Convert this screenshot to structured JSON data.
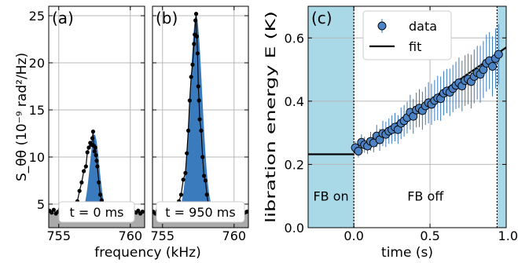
{
  "chart_data": [
    {
      "type": "line",
      "panel": "(a)",
      "ylabel": "S_θθ (10⁻⁹ rad²/Hz)",
      "xlabel": "frequency (kHz)",
      "xlim": [
        754.3,
        761.0
      ],
      "ylim": [
        2.5,
        26
      ],
      "xticks": [
        755,
        760
      ],
      "yticks": [
        5,
        10,
        15,
        20,
        25
      ],
      "grid": true,
      "annotation": "t = 0 ms",
      "noise_floor": 2.5,
      "baseline": 4.1,
      "peak_center": 757.5,
      "peak_height": 12.4,
      "peak_width": 0.33,
      "x": [
        754.35,
        754.5,
        754.65,
        754.8,
        754.95,
        755.1,
        755.25,
        755.4,
        755.55,
        755.7,
        755.85,
        756.0,
        756.15,
        756.3,
        756.45,
        756.6,
        756.75,
        756.9,
        757.0,
        757.1,
        757.2,
        757.3,
        757.35,
        757.4,
        757.45,
        757.5,
        757.55,
        757.6,
        757.65,
        757.7,
        757.8,
        757.9,
        758.0,
        758.1,
        758.2,
        758.3,
        758.45,
        758.6,
        758.75,
        758.9,
        759.05,
        759.2,
        759.35,
        759.5,
        759.65,
        759.8,
        759.95,
        760.1,
        760.25,
        760.4,
        760.55,
        760.7,
        760.85
      ],
      "y": [
        4.3,
        4.1,
        4.4,
        4.0,
        4.2,
        4.5,
        3.9,
        4.3,
        4.1,
        4.6,
        4.2,
        4.9,
        4.7,
        5.3,
        6.4,
        7.3,
        8.5,
        9.0,
        10.5,
        11.0,
        11.5,
        11.3,
        12.0,
        12.7,
        11.2,
        10.6,
        11.0,
        10.2,
        9.6,
        9.0,
        7.3,
        6.0,
        5.4,
        4.8,
        4.6,
        4.4,
        4.0,
        4.3,
        4.1,
        4.2,
        3.9,
        4.0,
        4.3,
        4.2,
        3.9,
        4.1,
        4.4,
        4.0,
        4.2,
        4.1,
        4.3,
        4.0,
        4.2
      ]
    },
    {
      "type": "line",
      "panel": "(b)",
      "xlim": [
        754.3,
        761.0
      ],
      "ylim": [
        2.5,
        26
      ],
      "xticks": [
        755,
        760
      ],
      "grid": true,
      "annotation": "t = 950 ms",
      "noise_floor": 2.5,
      "baseline": 4.1,
      "peak_center": 757.35,
      "peak_height": 25.0,
      "peak_width": 0.42,
      "x": [
        754.35,
        754.5,
        754.65,
        754.8,
        754.95,
        755.1,
        755.25,
        755.4,
        755.55,
        755.7,
        755.85,
        756.0,
        756.15,
        756.3,
        756.45,
        756.6,
        756.7,
        756.8,
        756.9,
        757.0,
        757.1,
        757.2,
        757.25,
        757.3,
        757.35,
        757.4,
        757.45,
        757.5,
        757.55,
        757.6,
        757.7,
        757.8,
        757.9,
        758.0,
        758.1,
        758.2,
        758.35,
        758.5,
        758.65,
        758.8,
        758.95,
        759.1,
        759.25,
        759.4,
        759.55,
        759.7,
        759.85,
        760.0,
        760.15,
        760.3,
        760.45,
        760.6,
        760.75,
        760.9
      ],
      "y": [
        4.2,
        4.0,
        4.3,
        4.1,
        4.0,
        4.4,
        4.2,
        4.3,
        4.1,
        4.6,
        4.5,
        5.0,
        5.3,
        6.0,
        7.6,
        8.3,
        10.4,
        12.8,
        16.0,
        18.5,
        19.8,
        22.0,
        23.0,
        24.5,
        25.2,
        22.8,
        21.0,
        17.5,
        16.0,
        14.0,
        12.8,
        10.0,
        8.0,
        7.5,
        6.0,
        5.0,
        4.4,
        4.5,
        4.2,
        4.1,
        4.3,
        4.0,
        4.2,
        4.1,
        4.3,
        4.2,
        4.0,
        4.4,
        4.1,
        4.2,
        4.0,
        4.3,
        4.1,
        4.2
      ]
    },
    {
      "type": "scatter",
      "panel": "(c)",
      "xlabel": "time (s)",
      "ylabel": "libration energy E (K)",
      "xlim": [
        -0.3,
        1.0
      ],
      "ylim": [
        0,
        0.7
      ],
      "xticks": [
        0.0,
        0.5,
        1.0
      ],
      "xticklabels": [
        "0.0",
        "0.5",
        "1.0"
      ],
      "yticks": [
        0.0,
        0.2,
        0.4,
        0.6
      ],
      "yticklabels": [
        "0.0",
        "0.2",
        "0.4",
        "0.6"
      ],
      "grid": true,
      "legend": {
        "placement": "top-left",
        "entries": [
          {
            "label": "data"
          },
          {
            "label": "fit"
          }
        ]
      },
      "regions": [
        {
          "x0": -0.3,
          "x1": 0.0,
          "label": "FB on",
          "color": "#a9d8e6"
        },
        {
          "x0": 0.0,
          "x1": 0.94,
          "label": "FB off",
          "color": "#ffffff"
        },
        {
          "x0": 0.94,
          "x1": 1.0,
          "label": "",
          "color": "#a9d8e6"
        }
      ],
      "fit": {
        "flat_value": 0.232,
        "x_start": 0.0,
        "slope": 0.333,
        "intercept": 0.237
      },
      "series": [
        {
          "name": "data",
          "x": [
            0.01,
            0.03,
            0.05,
            0.07,
            0.09,
            0.11,
            0.13,
            0.15,
            0.17,
            0.19,
            0.21,
            0.23,
            0.25,
            0.27,
            0.29,
            0.31,
            0.33,
            0.35,
            0.37,
            0.39,
            0.41,
            0.43,
            0.45,
            0.47,
            0.49,
            0.51,
            0.53,
            0.55,
            0.57,
            0.59,
            0.61,
            0.63,
            0.65,
            0.67,
            0.69,
            0.71,
            0.73,
            0.75,
            0.77,
            0.79,
            0.81,
            0.83,
            0.85,
            0.87,
            0.89,
            0.91,
            0.93,
            0.95
          ],
          "y": [
            0.253,
            0.242,
            0.27,
            0.262,
            0.258,
            0.273,
            0.268,
            0.29,
            0.278,
            0.298,
            0.295,
            0.305,
            0.31,
            0.318,
            0.31,
            0.33,
            0.338,
            0.348,
            0.365,
            0.352,
            0.372,
            0.378,
            0.37,
            0.385,
            0.395,
            0.39,
            0.402,
            0.41,
            0.408,
            0.425,
            0.432,
            0.428,
            0.44,
            0.45,
            0.458,
            0.448,
            0.465,
            0.47,
            0.462,
            0.478,
            0.49,
            0.485,
            0.5,
            0.52,
            0.528,
            0.51,
            0.535,
            0.548
          ],
          "yerr": [
            0.02,
            0.02,
            0.025,
            0.025,
            0.025,
            0.03,
            0.03,
            0.035,
            0.035,
            0.04,
            0.04,
            0.04,
            0.045,
            0.045,
            0.045,
            0.05,
            0.05,
            0.05,
            0.055,
            0.055,
            0.055,
            0.06,
            0.06,
            0.06,
            0.065,
            0.065,
            0.065,
            0.07,
            0.07,
            0.07,
            0.07,
            0.075,
            0.075,
            0.075,
            0.08,
            0.08,
            0.08,
            0.08,
            0.085,
            0.085,
            0.085,
            0.09,
            0.09,
            0.09,
            0.09,
            0.095,
            0.095,
            0.095
          ]
        }
      ]
    }
  ],
  "colors": {
    "fill": "#3a7bbd",
    "marker_face": "#4c83c4",
    "errorbar": "#3a7bbd",
    "noise_floor": "#aaaaaa",
    "fb_region": "#a9d8e6",
    "grid": "#b8b8b8"
  }
}
